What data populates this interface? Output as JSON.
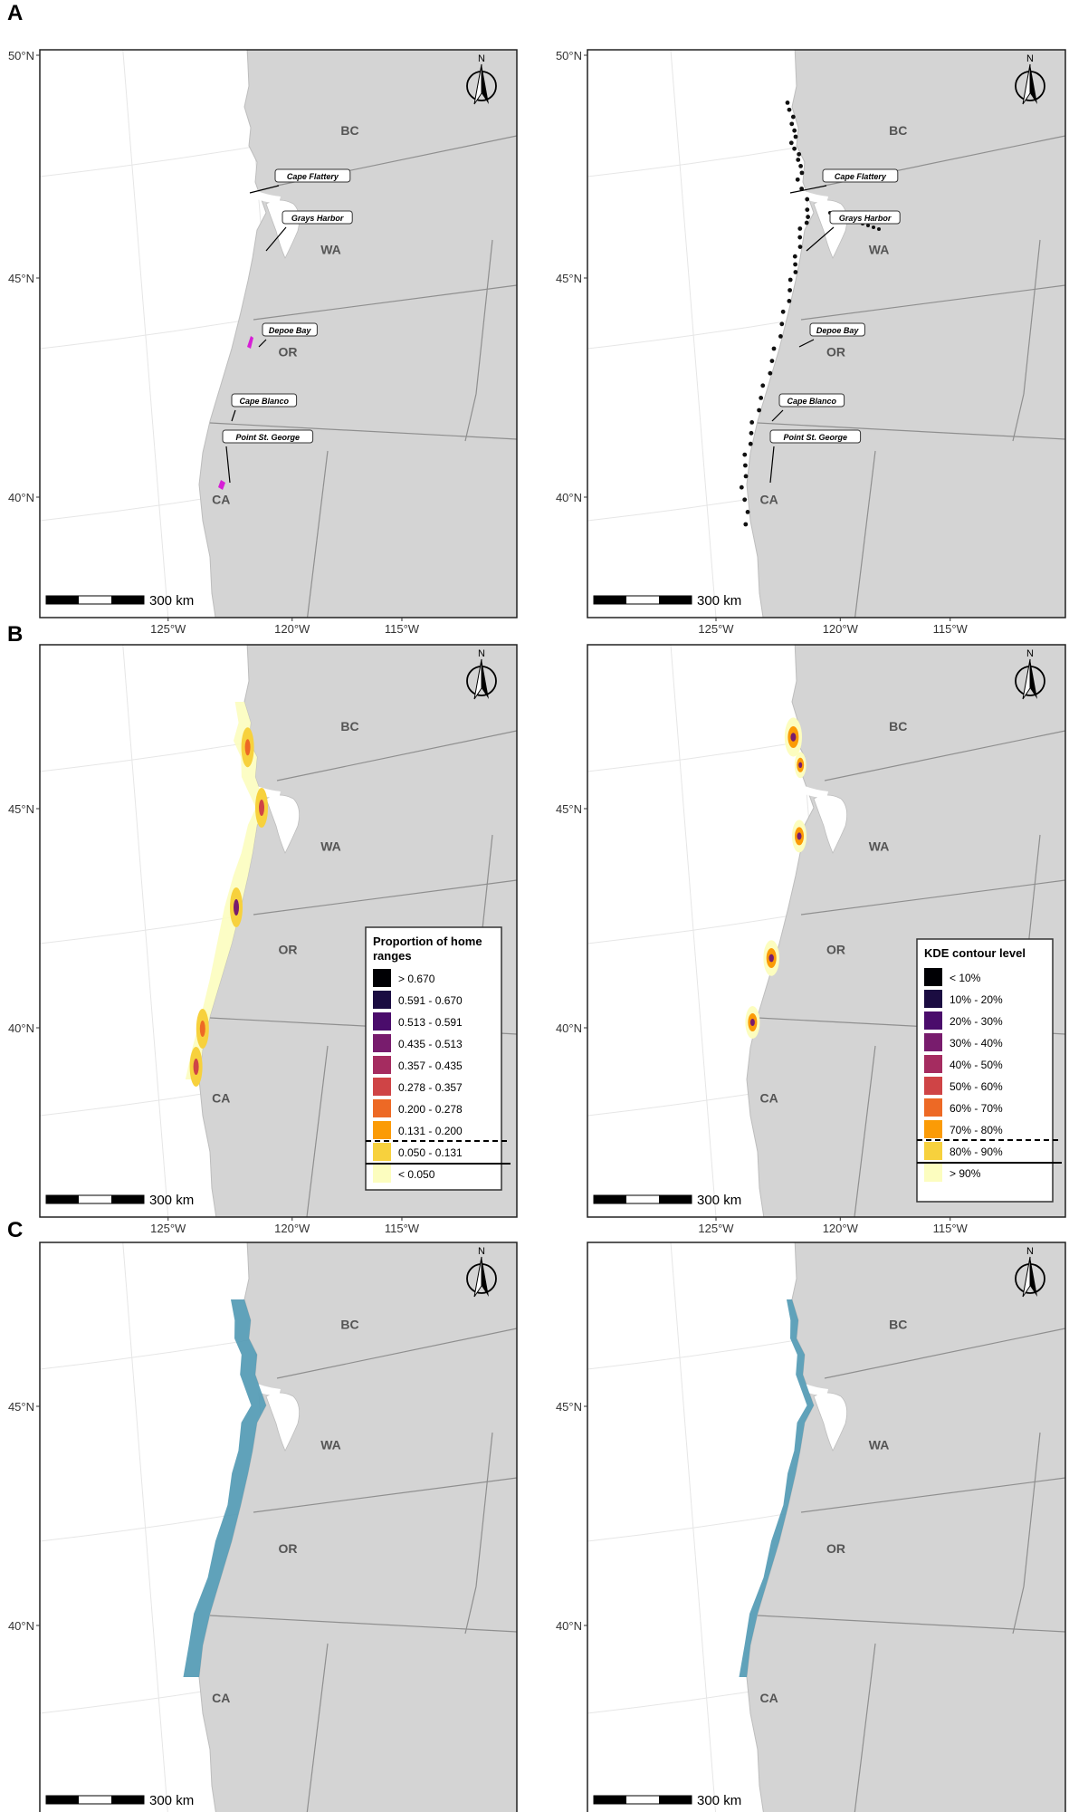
{
  "panel_labels": [
    "A",
    "B",
    "C"
  ],
  "lat_labels": [
    "50°N",
    "45°N",
    "40°N"
  ],
  "lat_labels_bc": [
    "45°N",
    "40°N"
  ],
  "lon_labels": [
    "125°W",
    "120°W",
    "115°W"
  ],
  "region_labels": [
    "BC",
    "WA",
    "OR",
    "CA"
  ],
  "scale_label": "300 km",
  "north_label": "N",
  "place_labels": [
    "Cape Flattery",
    "Grays Harbor",
    "Depoe Bay",
    "Cape Blanco",
    "Point St. George"
  ],
  "legend_home": {
    "title": "Proportion of home ranges",
    "items": [
      "> 0.670",
      "0.591 - 0.670",
      "0.513 - 0.591",
      "0.435 - 0.513",
      "0.357 - 0.435",
      "0.278 - 0.357",
      "0.200 - 0.278",
      "0.131 - 0.200",
      "0.050 - 0.131",
      "< 0.050"
    ],
    "colors": [
      "#000004",
      "#1b0c41",
      "#4a0c6b",
      "#781c6d",
      "#a52c60",
      "#cf4446",
      "#ed6925",
      "#fb9b06",
      "#f7d13d",
      "#fcfdbf"
    ]
  },
  "legend_kde": {
    "title": "KDE contour level",
    "items": [
      "< 10%",
      "10% - 20%",
      "20% - 30%",
      "30% - 40%",
      "40% - 50%",
      "50% - 60%",
      "60% - 70%",
      "70% - 80%",
      "80% - 90%",
      "> 90%"
    ],
    "colors": [
      "#000004",
      "#1b0c41",
      "#4a0c6b",
      "#781c6d",
      "#a52c60",
      "#cf4446",
      "#ed6925",
      "#fb9b06",
      "#f7d13d",
      "#fcfdbf"
    ]
  },
  "colors": {
    "land": "#d4d4d4",
    "ocean": "#ffffff",
    "border": "#8f8f8f",
    "graticule": "#e6e6e6",
    "track_magenta": "#d61fd6",
    "points": "#111111",
    "habitat_blue": "#4f98b3"
  }
}
